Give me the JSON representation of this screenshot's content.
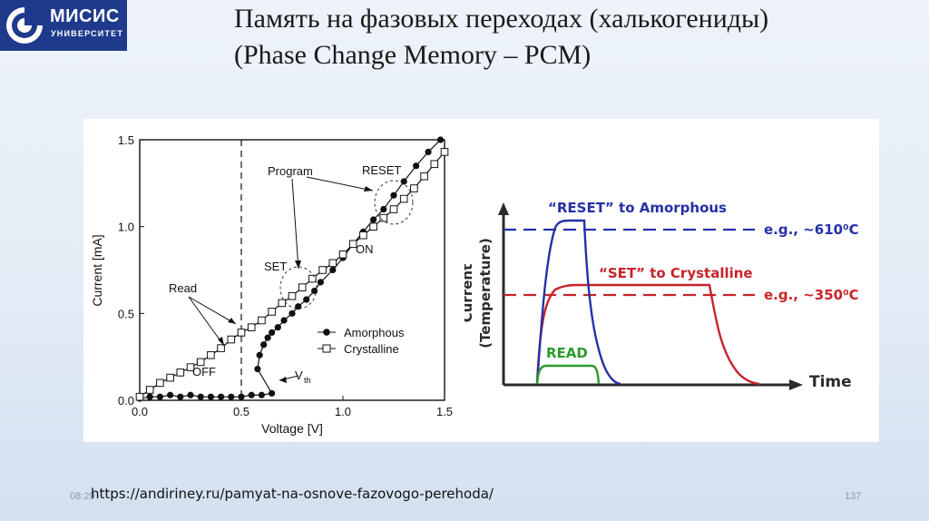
{
  "logo": {
    "name": "МИСИС",
    "subtitle": "УНИВЕРСИТЕТ"
  },
  "title": {
    "line1": "Память на фазовых переходах (халькогениды)",
    "line2": "(Phase Change Memory – PCM)"
  },
  "chart_data": [
    {
      "type": "line",
      "xlabel": "Voltage [V]",
      "ylabel": "Current [mA]",
      "xlim": [
        0,
        1.5
      ],
      "ylim": [
        0,
        1.5
      ],
      "x_ticks": [
        "0.0",
        "0.5",
        "1.0",
        "1.5"
      ],
      "y_ticks": [
        "0.0",
        "0.5",
        "1.0",
        "1.5"
      ],
      "legend": {
        "placement": "lower-right",
        "entries": [
          "Amorphous",
          "Crystalline"
        ]
      },
      "annotations": [
        "Program",
        "RESET",
        "SET",
        "ON",
        "Read",
        "OFF",
        "V",
        "th"
      ],
      "series": [
        {
          "name": "Amorphous",
          "marker": "filled-circle",
          "points": [
            [
              0.0,
              0.01
            ],
            [
              0.05,
              0.02
            ],
            [
              0.1,
              0.02
            ],
            [
              0.15,
              0.03
            ],
            [
              0.2,
              0.02
            ],
            [
              0.25,
              0.03
            ],
            [
              0.3,
              0.02
            ],
            [
              0.35,
              0.02
            ],
            [
              0.4,
              0.02
            ],
            [
              0.45,
              0.02
            ],
            [
              0.5,
              0.02
            ],
            [
              0.55,
              0.03
            ],
            [
              0.6,
              0.03
            ],
            [
              0.65,
              0.04
            ],
            [
              0.58,
              0.18
            ],
            [
              0.59,
              0.26
            ],
            [
              0.61,
              0.32
            ],
            [
              0.63,
              0.36
            ],
            [
              0.65,
              0.39
            ],
            [
              0.68,
              0.42
            ],
            [
              0.71,
              0.46
            ],
            [
              0.75,
              0.5
            ],
            [
              0.78,
              0.54
            ],
            [
              0.82,
              0.58
            ],
            [
              0.86,
              0.63
            ],
            [
              0.89,
              0.68
            ],
            [
              0.95,
              0.75
            ],
            [
              1.0,
              0.82
            ],
            [
              1.05,
              0.9
            ],
            [
              1.1,
              0.97
            ],
            [
              1.15,
              1.04
            ],
            [
              1.2,
              1.1
            ],
            [
              1.25,
              1.18
            ],
            [
              1.3,
              1.26
            ],
            [
              1.36,
              1.35
            ],
            [
              1.42,
              1.43
            ],
            [
              1.48,
              1.5
            ]
          ]
        },
        {
          "name": "Crystalline",
          "marker": "open-square",
          "points": [
            [
              0.0,
              0.02
            ],
            [
              0.05,
              0.06
            ],
            [
              0.1,
              0.1
            ],
            [
              0.15,
              0.13
            ],
            [
              0.2,
              0.16
            ],
            [
              0.25,
              0.19
            ],
            [
              0.3,
              0.22
            ],
            [
              0.35,
              0.26
            ],
            [
              0.4,
              0.3
            ],
            [
              0.45,
              0.35
            ],
            [
              0.5,
              0.39
            ],
            [
              0.55,
              0.42
            ],
            [
              0.6,
              0.46
            ],
            [
              0.65,
              0.51
            ],
            [
              0.7,
              0.56
            ],
            [
              0.75,
              0.6
            ],
            [
              0.8,
              0.65
            ],
            [
              0.85,
              0.7
            ],
            [
              0.9,
              0.75
            ],
            [
              0.95,
              0.79
            ],
            [
              1.0,
              0.84
            ],
            [
              1.05,
              0.9
            ],
            [
              1.1,
              0.95
            ],
            [
              1.15,
              1.0
            ],
            [
              1.2,
              1.05
            ],
            [
              1.25,
              1.1
            ],
            [
              1.3,
              1.16
            ],
            [
              1.35,
              1.22
            ],
            [
              1.4,
              1.29
            ],
            [
              1.45,
              1.36
            ],
            [
              1.5,
              1.43
            ]
          ]
        }
      ]
    },
    {
      "type": "line",
      "ylabel_line1": "Current",
      "ylabel_line2": "(Temperature)",
      "xlabel": "Time",
      "series": [
        {
          "name": "“RESET” to Amorphous",
          "color": "#2530a8",
          "level": "e.g., ~610⁰C"
        },
        {
          "name": "“SET” to Crystalline",
          "color": "#c8232a",
          "level": "e.g., ~350⁰C"
        },
        {
          "name": "READ",
          "color": "#2a9b2a"
        }
      ]
    }
  ],
  "footer": {
    "url": "https://andiriney.ru/pamyat-na-osnove-fazovogo-perehoda/",
    "time": "08:29",
    "page_number": "137"
  }
}
